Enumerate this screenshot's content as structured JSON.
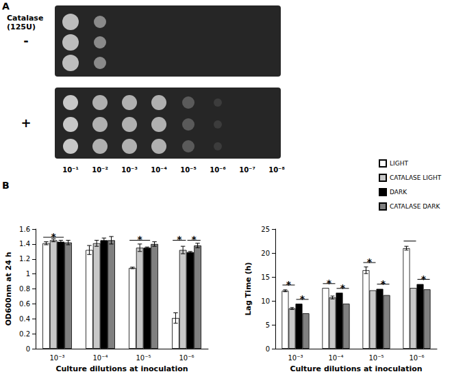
{
  "panel_a": {
    "panel_label": "A",
    "treatment_label": "Catalase (125U)",
    "rows": [
      "-",
      "+"
    ],
    "dilutions": [
      "10⁻¹",
      "10⁻²",
      "10⁻³",
      "10⁻⁴",
      "10⁻⁵",
      "10⁻⁶",
      "10⁻⁷",
      "10⁻⁸"
    ]
  },
  "chart_data": [
    {
      "type": "bar",
      "panel_label": "B",
      "x_label": "Culture dilutions at inoculation",
      "y_label": "OD600nm at 24 h",
      "categories": [
        "10⁻³",
        "10⁻⁴",
        "10⁻⁵",
        "10⁻⁶"
      ],
      "series": [
        {
          "name": "LIGHT",
          "color": "#ffffff",
          "values": [
            1.41,
            1.32,
            1.08,
            0.41
          ],
          "errors": [
            0.02,
            0.06,
            0.01,
            0.07
          ]
        },
        {
          "name": "CATALASE LIGHT",
          "color": "#c8c8c8",
          "values": [
            1.45,
            1.41,
            1.35,
            1.32
          ],
          "errors": [
            0.02,
            0.04,
            0.05,
            0.05
          ]
        },
        {
          "name": "DARK",
          "color": "#000000",
          "values": [
            1.43,
            1.45,
            1.35,
            1.29
          ],
          "errors": [
            0.02,
            0.03,
            0.01,
            0.01
          ]
        },
        {
          "name": "CATALASE DARK",
          "color": "#808080",
          "values": [
            1.42,
            1.45,
            1.4,
            1.38
          ],
          "errors": [
            0.03,
            0.05,
            0.03,
            0.03
          ]
        }
      ],
      "ylim": [
        0,
        1.6
      ],
      "yticks": [
        0,
        0.2,
        0.4,
        0.6,
        0.8,
        1,
        1.2,
        1.4,
        1.6
      ],
      "grid": false,
      "annotations": [
        {
          "category": "10⁻³",
          "from": "LIGHT",
          "to": "DARK",
          "y": 1.49,
          "label": "*"
        },
        {
          "category": "10⁻⁵",
          "from": "LIGHT",
          "to": "DARK",
          "y": 1.45,
          "label": "*"
        },
        {
          "category": "10⁻⁶",
          "from": "LIGHT",
          "to": "CATALASE LIGHT",
          "y": 1.45,
          "label": "*"
        },
        {
          "category": "10⁻⁶",
          "from": "DARK",
          "to": "CATALASE DARK",
          "y": 1.45,
          "label": "*"
        }
      ]
    },
    {
      "type": "bar",
      "x_label": "Culture dilutions at inoculation",
      "y_label": "Lag Time (h)",
      "categories": [
        "10⁻³",
        "10⁻⁴",
        "10⁻⁵",
        "10⁻⁶"
      ],
      "series": [
        {
          "name": "LIGHT",
          "color": "#ffffff",
          "values": [
            12.1,
            12.7,
            16.4,
            21.0
          ],
          "errors": [
            0.2,
            0,
            0.7,
            0.4
          ]
        },
        {
          "name": "CATALASE LIGHT",
          "color": "#c8c8c8",
          "values": [
            8.4,
            10.7,
            12.2,
            12.7
          ],
          "errors": [
            0.2,
            0.3,
            0,
            0
          ]
        },
        {
          "name": "DARK",
          "color": "#000000",
          "values": [
            9.4,
            11.7,
            12.5,
            13.5
          ],
          "errors": [
            0,
            0,
            0,
            0
          ]
        },
        {
          "name": "CATALASE DARK",
          "color": "#808080",
          "values": [
            7.4,
            9.4,
            11.2,
            12.4
          ],
          "errors": [
            0,
            0,
            0,
            0
          ]
        }
      ],
      "ylim": [
        0,
        25
      ],
      "yticks": [
        0,
        5,
        10,
        15,
        20,
        25
      ],
      "grid": false,
      "legend": "top right",
      "annotations": [
        {
          "category": "10⁻³",
          "from": "LIGHT",
          "to": "CATALASE LIGHT",
          "y": 13.3,
          "label": "*"
        },
        {
          "category": "10⁻³",
          "from": "DARK",
          "to": "CATALASE DARK",
          "y": 10.3,
          "label": "*"
        },
        {
          "category": "10⁻⁴",
          "from": "LIGHT",
          "to": "CATALASE LIGHT",
          "y": 13.6,
          "label": "*"
        },
        {
          "category": "10⁻⁴",
          "from": "DARK",
          "to": "CATALASE DARK",
          "y": 12.6,
          "label": "*"
        },
        {
          "category": "10⁻⁵",
          "from": "LIGHT",
          "to": "CATALASE LIGHT",
          "y": 18.0,
          "label": "*"
        },
        {
          "category": "10⁻⁵",
          "from": "DARK",
          "to": "CATALASE DARK",
          "y": 13.5,
          "label": "*"
        },
        {
          "category": "10⁻⁶",
          "from": "LIGHT",
          "to": "CATALASE LIGHT",
          "y": 22.5
        },
        {
          "category": "10⁻⁶",
          "from": "DARK",
          "to": "CATALASE DARK",
          "y": 14.5,
          "label": "*"
        }
      ]
    }
  ]
}
